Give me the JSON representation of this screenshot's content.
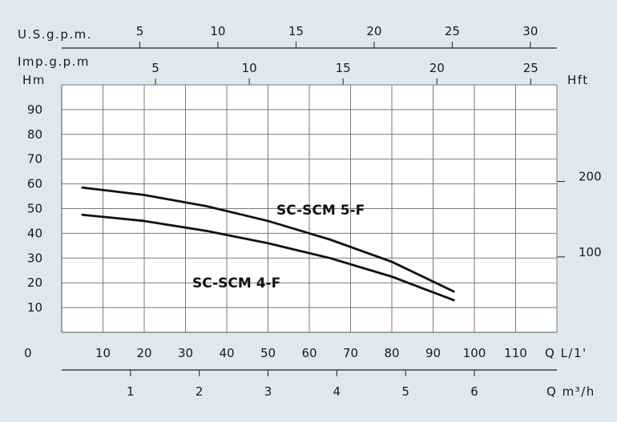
{
  "chart_data": {
    "type": "line",
    "grid": true,
    "x_axis": {
      "unit_label": "Q L/1'",
      "range": [
        0,
        120
      ],
      "origin_label": "0",
      "ticks": [
        "10",
        "20",
        "30",
        "40",
        "50",
        "60",
        "70",
        "80",
        "90",
        "100",
        "110"
      ]
    },
    "y_axis": {
      "unit_label": "Hm",
      "range": [
        0,
        100
      ],
      "ticks": [
        "10",
        "20",
        "30",
        "40",
        "50",
        "60",
        "70",
        "80",
        "90"
      ]
    },
    "y_axis_right": {
      "unit_label": "Hft",
      "ticks": [
        "200",
        "100"
      ],
      "tick_values_m": [
        60.96,
        30.48
      ]
    },
    "top_axis_usgpm": {
      "unit_label": "U.S.g.p.m.",
      "ticks": [
        "5",
        "10",
        "15",
        "20",
        "25",
        "30"
      ]
    },
    "top_axis_impgpm": {
      "unit_label": "Imp.g.p.m",
      "ticks": [
        "5",
        "10",
        "15",
        "20",
        "25"
      ]
    },
    "bottom_axis_m3h": {
      "unit_label": "Q m³/h",
      "ticks": [
        "1",
        "2",
        "3",
        "4",
        "5",
        "6"
      ]
    },
    "series": [
      {
        "name": "SC-SCM 5-F",
        "color": "#111111",
        "x": [
          5,
          20,
          35,
          50,
          65,
          80,
          95
        ],
        "y": [
          58.5,
          55.5,
          51,
          45,
          37.5,
          28.5,
          16.5
        ]
      },
      {
        "name": "SC-SCM 4-F",
        "color": "#111111",
        "x": [
          5,
          20,
          35,
          50,
          65,
          80,
          95
        ],
        "y": [
          47.5,
          45,
          41,
          36,
          30,
          22.5,
          13
        ]
      }
    ]
  }
}
